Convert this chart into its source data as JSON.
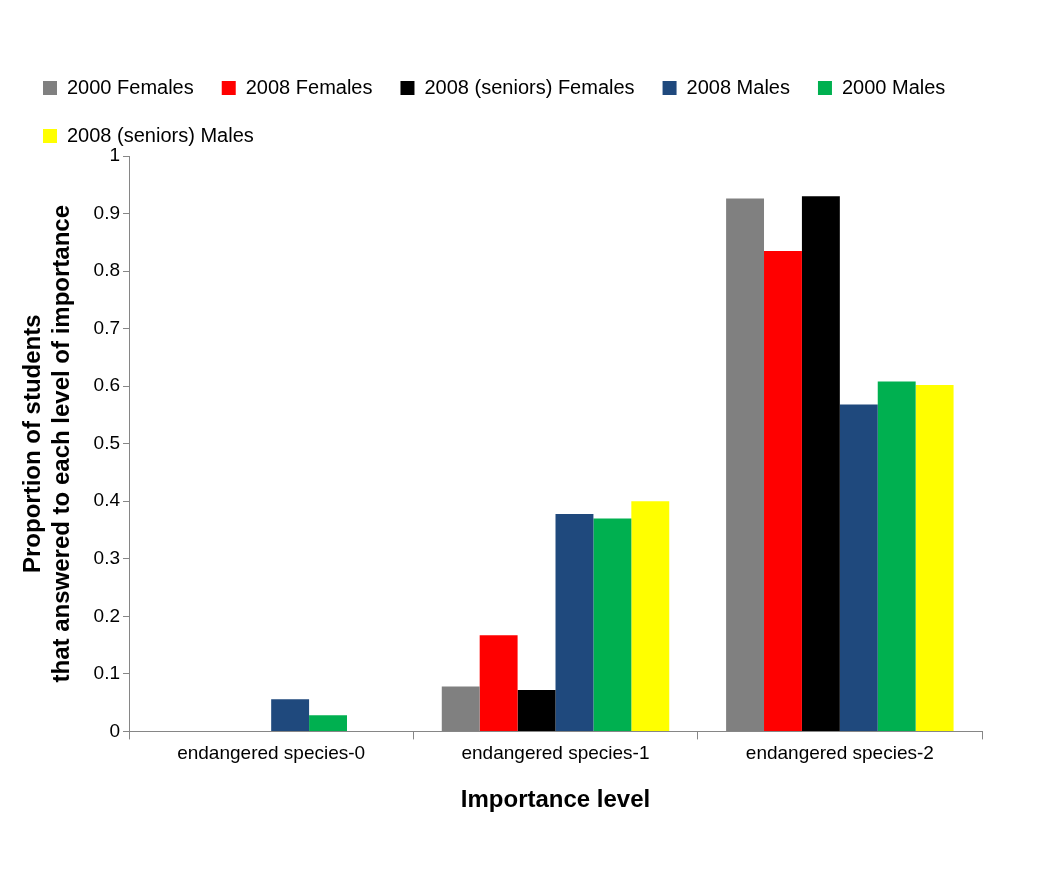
{
  "chart_data": {
    "type": "bar",
    "xlabel": "Importance level",
    "ylabel": "Proportion of students\nthat answered to each level of importance",
    "categories": [
      "endangered species-0",
      "endangered species-1",
      "endangered species-2"
    ],
    "series": [
      {
        "name": "2000 Females",
        "color": "#808080",
        "values": [
          0,
          0.078,
          0.926
        ]
      },
      {
        "name": "2008 Females",
        "color": "#ff0000",
        "values": [
          0,
          0.167,
          0.835
        ]
      },
      {
        "name": "2008 (seniors) Females",
        "color": "#000000",
        "values": [
          0,
          0.072,
          0.93
        ]
      },
      {
        "name": "2008 Males",
        "color": "#1f497d",
        "values": [
          0.056,
          0.378,
          0.568
        ]
      },
      {
        "name": "2000 Males",
        "color": "#00b050",
        "values": [
          0.028,
          0.37,
          0.608
        ]
      },
      {
        "name": "2008 (seniors) Males",
        "color": "#ffff00",
        "values": [
          0,
          0.4,
          0.602
        ]
      }
    ],
    "ylim": [
      0,
      1
    ],
    "yticks": [
      0,
      0.1,
      0.2,
      0.3,
      0.4,
      0.5,
      0.6,
      0.7,
      0.8,
      0.9,
      1
    ],
    "grid": false,
    "legend": "top"
  }
}
